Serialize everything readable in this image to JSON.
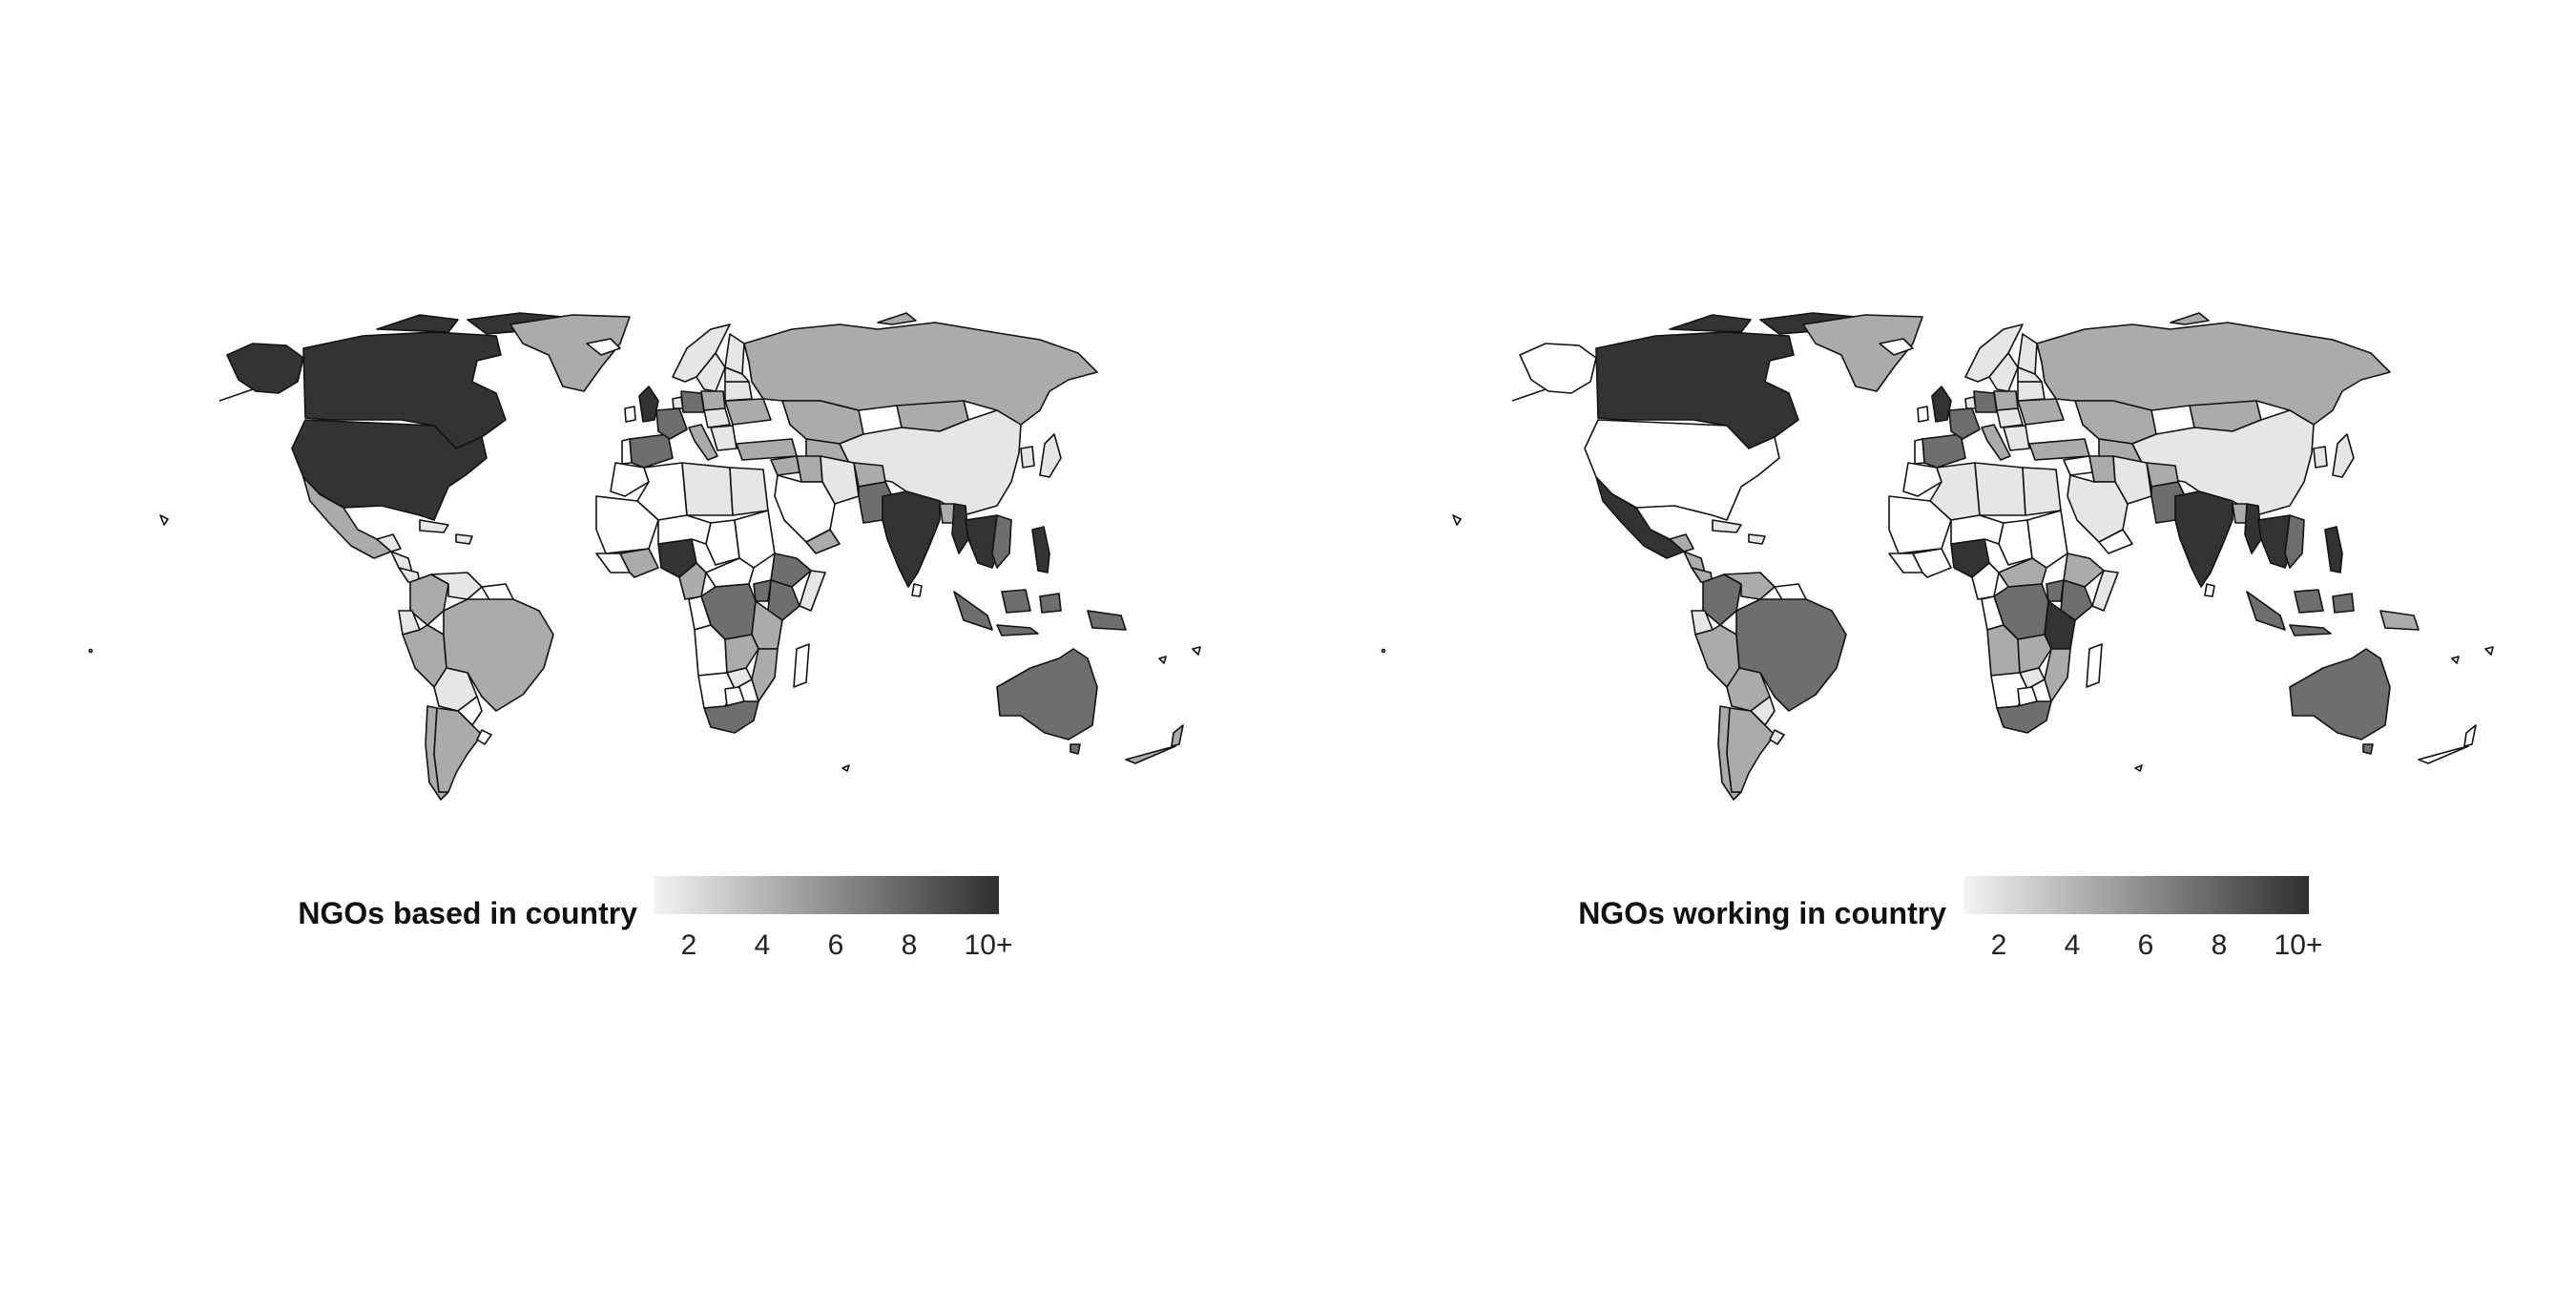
{
  "colors": {
    "background": "#ffffff",
    "border": "#111111",
    "no_data": "#ffffff",
    "scale_low": "#f4f4f4",
    "scale_high": "#2f2f2f"
  },
  "maps": [
    {
      "legend_title": "NGOs based in country",
      "legend_ticks": [
        "2",
        "4",
        "6",
        "8",
        "10+"
      ]
    },
    {
      "legend_title": "NGOs working in country",
      "legend_ticks": [
        "2",
        "4",
        "6",
        "8",
        "10+"
      ]
    }
  ]
}
